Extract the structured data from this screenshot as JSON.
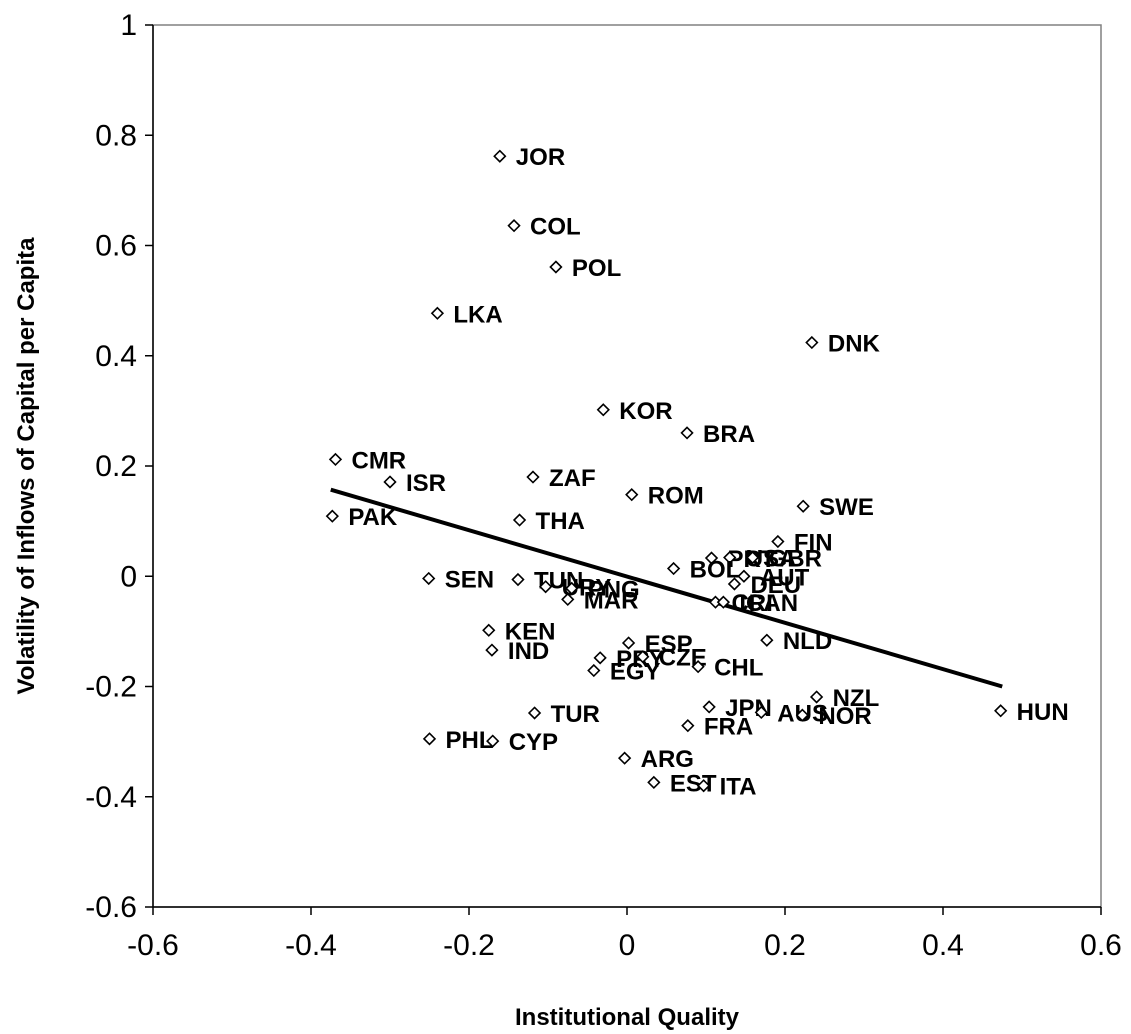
{
  "chart_data": {
    "type": "scatter",
    "xlabel": "Institutional Quality",
    "ylabel": "Volatility of Inflows of Capital per Capita",
    "xlim": [
      -0.6,
      0.6
    ],
    "ylim": [
      -0.6,
      1
    ],
    "xticks": [
      "-0.6",
      "-0.4",
      "-0.2",
      "0",
      "0.2",
      "0.4",
      "0.6"
    ],
    "yticks": [
      "-0.6",
      "-0.4",
      "-0.2",
      "0",
      "0.2",
      "0.4",
      "0.6",
      "0.8",
      "1"
    ],
    "x_tick_values": [
      -0.6,
      -0.4,
      -0.2,
      0,
      0.2,
      0.4,
      0.6
    ],
    "y_tick_values": [
      -0.6,
      -0.4,
      -0.2,
      0,
      0.2,
      0.4,
      0.6,
      0.8,
      1
    ],
    "grid": false,
    "marker": "hollow-diamond",
    "trendline": {
      "x": [
        -0.375,
        0.475
      ],
      "y": [
        0.157,
        -0.2
      ]
    },
    "points": [
      {
        "label": "JOR",
        "x": -0.161,
        "y": 0.762
      },
      {
        "label": "COL",
        "x": -0.143,
        "y": 0.636
      },
      {
        "label": "POL",
        "x": -0.09,
        "y": 0.561
      },
      {
        "label": "LKA",
        "x": -0.24,
        "y": 0.477
      },
      {
        "label": "DNK",
        "x": 0.234,
        "y": 0.424
      },
      {
        "label": "KOR",
        "x": -0.03,
        "y": 0.302
      },
      {
        "label": "BRA",
        "x": 0.076,
        "y": 0.26
      },
      {
        "label": "CMR",
        "x": -0.369,
        "y": 0.212
      },
      {
        "label": "ISR",
        "x": -0.3,
        "y": 0.171
      },
      {
        "label": "ZAF",
        "x": -0.119,
        "y": 0.18
      },
      {
        "label": "ROM",
        "x": 0.006,
        "y": 0.148
      },
      {
        "label": "SWE",
        "x": 0.223,
        "y": 0.127
      },
      {
        "label": "PAK",
        "x": -0.373,
        "y": 0.109
      },
      {
        "label": "THA",
        "x": -0.136,
        "y": 0.102
      },
      {
        "label": "FIN",
        "x": 0.191,
        "y": 0.063
      },
      {
        "label": "PRT",
        "x": 0.107,
        "y": 0.033
      },
      {
        "label": "USA",
        "x": 0.13,
        "y": 0.034
      },
      {
        "label": "GBR",
        "x": 0.159,
        "y": 0.034
      },
      {
        "label": "BOL",
        "x": 0.059,
        "y": 0.014
      },
      {
        "label": "AUT",
        "x": 0.148,
        "y": 0.0
      },
      {
        "label": "DEU",
        "x": 0.136,
        "y": -0.014
      },
      {
        "label": "SEN",
        "x": -0.251,
        "y": -0.004
      },
      {
        "label": "TUN",
        "x": -0.138,
        "y": -0.006
      },
      {
        "label": "URY",
        "x": -0.103,
        "y": -0.019
      },
      {
        "label": "PNG",
        "x": -0.07,
        "y": -0.022
      },
      {
        "label": "MAR",
        "x": -0.075,
        "y": -0.042
      },
      {
        "label": "CRI",
        "x": 0.112,
        "y": -0.047
      },
      {
        "label": "ICAN",
        "x": 0.122,
        "y": -0.047
      },
      {
        "label": "KEN",
        "x": -0.175,
        "y": -0.098
      },
      {
        "label": "NLD",
        "x": 0.177,
        "y": -0.116
      },
      {
        "label": "ESP",
        "x": 0.002,
        "y": -0.121
      },
      {
        "label": "IND",
        "x": -0.171,
        "y": -0.134
      },
      {
        "label": "PRY",
        "x": -0.034,
        "y": -0.148
      },
      {
        "label": "CZE",
        "x": 0.02,
        "y": -0.146
      },
      {
        "label": "CHL",
        "x": 0.09,
        "y": -0.164
      },
      {
        "label": "EGY",
        "x": -0.042,
        "y": -0.171
      },
      {
        "label": "NZL",
        "x": 0.24,
        "y": -0.219
      },
      {
        "label": "JPN",
        "x": 0.104,
        "y": -0.237
      },
      {
        "label": "AUS",
        "x": 0.17,
        "y": -0.247
      },
      {
        "label": "NOR",
        "x": 0.222,
        "y": -0.252
      },
      {
        "label": "HUN",
        "x": 0.473,
        "y": -0.244
      },
      {
        "label": "TUR",
        "x": -0.117,
        "y": -0.248
      },
      {
        "label": "FRA",
        "x": 0.077,
        "y": -0.271
      },
      {
        "label": "PHL",
        "x": -0.25,
        "y": -0.295
      },
      {
        "label": "CYP",
        "x": -0.17,
        "y": -0.299
      },
      {
        "label": "ARG",
        "x": -0.003,
        "y": -0.33
      },
      {
        "label": "EST",
        "x": 0.034,
        "y": -0.374
      },
      {
        "label": "ITA",
        "x": 0.097,
        "y": -0.38
      }
    ]
  }
}
